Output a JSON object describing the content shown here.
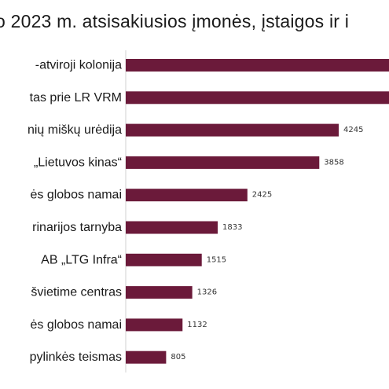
{
  "title": "o 2023 m. atsisakiusios įmonės, įstaigos ir i",
  "chart_data": {
    "type": "bar",
    "orientation": "horizontal",
    "title": "o 2023 m. atsisakiusios įmonės, įstaigos ir i",
    "categories": [
      "-atviroji kolonija",
      "tas prie LR VRM",
      "nių miškų urėdija",
      "„Lietuvos kinas“",
      "ės globos namai",
      "rinarijos tarnyba",
      "AB „LTG Infra“",
      "švietime centras",
      "ės globos namai",
      "pylinkės teismas"
    ],
    "values": [
      null,
      null,
      4245,
      3858,
      2425,
      1833,
      1515,
      1326,
      1132,
      805
    ],
    "value_labels": [
      "",
      "",
      "4245",
      "3858",
      "2425",
      "1833",
      "1515",
      "1326",
      "1132",
      "805"
    ],
    "bar_color": "#6b1a3a",
    "grid": false,
    "legend": "none"
  }
}
